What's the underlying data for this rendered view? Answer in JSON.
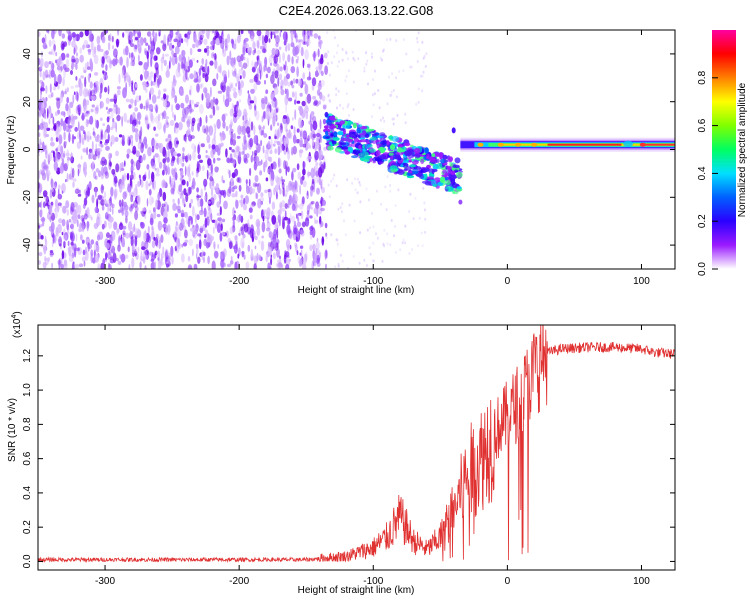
{
  "page_title": "C2E4.2026.063.13.22.G08",
  "chart_data": [
    {
      "type": "heatmap",
      "title": "C2E4.2026.063.13.22.G08",
      "xlabel": "Height of straight line (km)",
      "ylabel": "Frequency (Hz)",
      "xlim": [
        -350,
        125
      ],
      "ylim": [
        -50,
        50
      ],
      "x_ticks": [
        -300,
        -200,
        -100,
        0,
        100
      ],
      "y_ticks": [
        -40,
        -20,
        0,
        20,
        40
      ],
      "colorbar": {
        "label": "Normalized spectral amplitude",
        "range": [
          0,
          1
        ],
        "ticks": [
          "0.0",
          "0.2",
          "0.4",
          "0.6",
          "0.8"
        ],
        "tick_values": [
          0.0,
          0.2,
          0.4,
          0.6,
          0.8
        ],
        "colors": [
          "#ffffff",
          "#9a1aff",
          "#2a00ff",
          "#0060ff",
          "#00e0ff",
          "#00ff60",
          "#80ff00",
          "#ffff00",
          "#ff8000",
          "#ff0000",
          "#ff00a0"
        ]
      },
      "regions": [
        {
          "name": "noise",
          "x_range": [
            -350,
            -135
          ],
          "freq_range": [
            -50,
            50
          ],
          "amplitude": 0.15
        },
        {
          "name": "onset",
          "x_range": [
            -135,
            -35
          ],
          "center_freq_start": 8,
          "center_freq_end": -12,
          "amplitude": 0.45
        },
        {
          "name": "tone",
          "x_range": [
            -35,
            125
          ],
          "center_freq": 2,
          "amplitude": 0.9
        }
      ]
    },
    {
      "type": "line",
      "xlabel": "Height of straight line (km)",
      "ylabel": "SNR (10 * v/v)",
      "scale_label": "(x10",
      "scale_exponent": "4",
      "xlim": [
        -350,
        125
      ],
      "ylim": [
        -0.05,
        1.38
      ],
      "x_ticks": [
        -300,
        -200,
        -100,
        0,
        100
      ],
      "y_ticks": [
        "0.0",
        "0.2",
        "0.4",
        "0.6",
        "0.8",
        "1.0",
        "1.2"
      ],
      "y_tick_values": [
        0.0,
        0.2,
        0.4,
        0.6,
        0.8,
        1.0,
        1.2
      ],
      "series": [
        {
          "name": "SNR",
          "color": "#e03030",
          "x": [
            -350,
            -150,
            -120,
            -100,
            -90,
            -80,
            -70,
            -60,
            -50,
            -40,
            -30,
            -20,
            -10,
            0,
            10,
            20,
            25,
            30,
            40,
            60,
            80,
            100,
            110,
            125
          ],
          "y": [
            0.01,
            0.01,
            0.03,
            0.08,
            0.14,
            0.26,
            0.12,
            0.07,
            0.14,
            0.3,
            0.5,
            0.6,
            0.75,
            0.85,
            0.95,
            1.1,
            1.18,
            1.22,
            1.24,
            1.25,
            1.25,
            1.24,
            1.22,
            1.21
          ]
        }
      ]
    }
  ]
}
